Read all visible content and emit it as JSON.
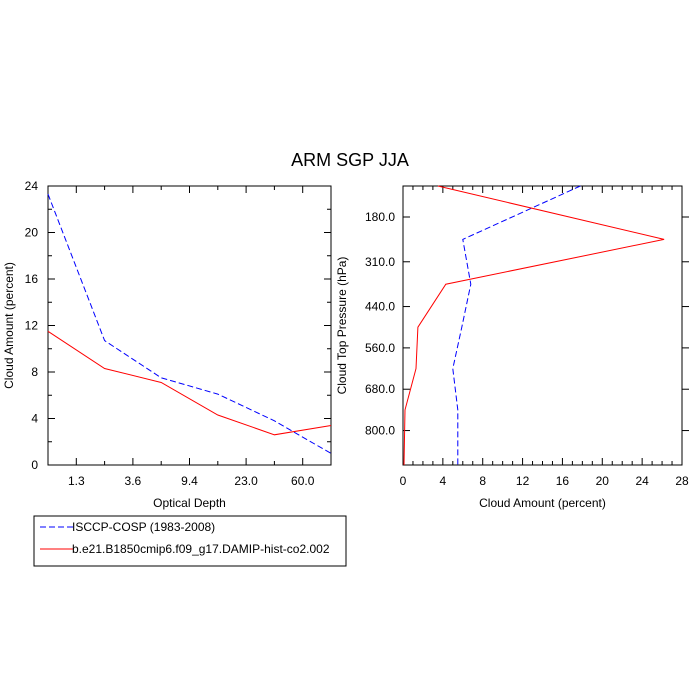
{
  "title": "ARM SGP JJA",
  "chart_data": [
    {
      "type": "line",
      "name": "optical-depth-panel",
      "xlabel": "Optical Depth",
      "ylabel": "Cloud Amount (percent)",
      "ylim": [
        0,
        24
      ],
      "yticks": [
        "0",
        "4",
        "8",
        "12",
        "16",
        "20",
        "24"
      ],
      "xtick_labels": [
        "1.3",
        "3.6",
        "9.4",
        "23.0",
        "60.0"
      ],
      "x_index": [
        0,
        1,
        2,
        3,
        4,
        5
      ],
      "series": [
        {
          "name": "ISCCP-COSP (1983-2008)",
          "color": "#0000ff",
          "dash": "dashed",
          "values": [
            23.3,
            10.7,
            7.5,
            6.1,
            3.8,
            1.0
          ]
        },
        {
          "name": "b.e21.B1850cmip6.f09_g17.DAMIP-hist-co2.002",
          "color": "#ff0000",
          "dash": "solid",
          "values": [
            11.5,
            8.3,
            7.1,
            4.3,
            2.6,
            3.4
          ]
        }
      ]
    },
    {
      "type": "line",
      "name": "pressure-panel",
      "xlabel": "Cloud Amount (percent)",
      "ylabel": "Cloud Top Pressure (hPa)",
      "xlim": [
        0,
        28
      ],
      "xticks": [
        "0",
        "4",
        "8",
        "12",
        "16",
        "20",
        "24",
        "28"
      ],
      "ytick_labels": [
        "180.0",
        "310.0",
        "440.0",
        "560.0",
        "680.0",
        "800.0"
      ],
      "pressure_levels": [
        90,
        245,
        375,
        500,
        620,
        740,
        900
      ],
      "series": [
        {
          "name": "ISCCP-COSP (1983-2008)",
          "color": "#0000ff",
          "dash": "dashed",
          "values": [
            17.8,
            6.0,
            6.8,
            5.9,
            5.0,
            5.5,
            5.5
          ]
        },
        {
          "name": "b.e21.B1850cmip6.f09_g17.DAMIP-hist-co2.002",
          "color": "#ff0000",
          "dash": "solid",
          "values": [
            3.5,
            26.2,
            4.3,
            1.5,
            1.3,
            0.2,
            0.1
          ]
        }
      ]
    }
  ],
  "legend": [
    {
      "label": "ISCCP-COSP (1983-2008)",
      "color": "#0000ff",
      "dash": "dashed"
    },
    {
      "label": "b.e21.B1850cmip6.f09_g17.DAMIP-hist-co2.002",
      "color": "#ff0000",
      "dash": "solid"
    }
  ]
}
